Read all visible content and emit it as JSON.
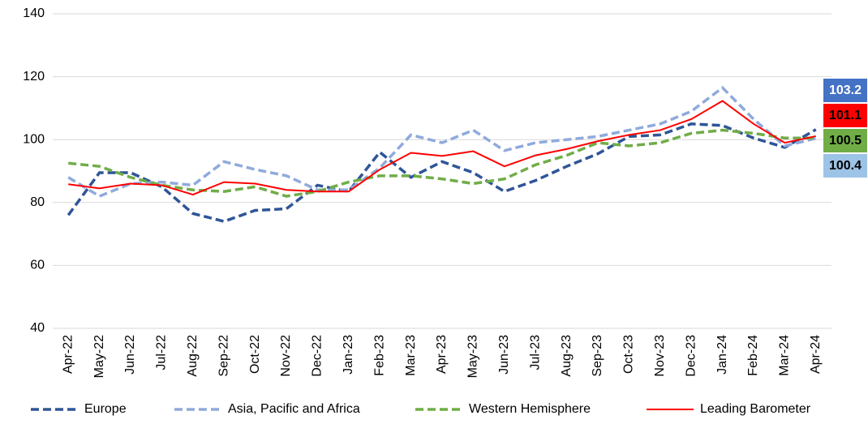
{
  "chart_data": {
    "type": "line",
    "categories": [
      "Apr-22",
      "May-22",
      "Jun-22",
      "Jul-22",
      "Aug-22",
      "Sep-22",
      "Oct-22",
      "Nov-22",
      "Dec-22",
      "Jan-23",
      "Feb-23",
      "Mar-23",
      "Apr-23",
      "May-23",
      "Jun-23",
      "Jul-23",
      "Aug-23",
      "Sep-23",
      "Oct-23",
      "Nov-23",
      "Dec-23",
      "Jan-24",
      "Feb-24",
      "Mar-24",
      "Apr-24"
    ],
    "series": [
      {
        "name": "Europe",
        "color": "#2f5597",
        "dashed": true,
        "values": [
          76,
          89.5,
          89.5,
          85,
          76.5,
          74,
          77.5,
          78,
          85.5,
          83.5,
          96,
          88,
          93,
          89.5,
          83.5,
          87,
          91.5,
          95.5,
          101,
          101.5,
          105,
          104.5,
          100.5,
          97.5,
          103.2
        ]
      },
      {
        "name": "Asia, Pacific and Africa",
        "color": "#8faadc",
        "dashed": true,
        "values": [
          88,
          82,
          86,
          86.5,
          85.5,
          93,
          90.5,
          88.5,
          84,
          84,
          91,
          101.5,
          99,
          103,
          96.5,
          99,
          100,
          101,
          103,
          105,
          109,
          116.5,
          106.5,
          98,
          100.4
        ]
      },
      {
        "name": "Western Hemisphere",
        "color": "#70ad47",
        "dashed": true,
        "values": [
          92.5,
          91.5,
          88,
          85.5,
          84,
          83.5,
          85,
          82,
          83.5,
          86.5,
          88.5,
          88.5,
          87.5,
          86,
          87.5,
          92,
          95,
          99,
          98,
          99,
          102,
          103,
          102,
          100.5,
          100.5
        ]
      },
      {
        "name": "Leading Barometer",
        "color": "#ff0000",
        "dashed": false,
        "values": [
          85.8,
          84.5,
          86,
          85.5,
          82.5,
          86.5,
          86,
          84,
          83.5,
          83.5,
          90.5,
          95.8,
          94.8,
          96.3,
          91.5,
          95,
          97,
          99.5,
          101.5,
          103,
          106.5,
          112.3,
          105,
          99,
          101.1
        ]
      }
    ],
    "end_labels": [
      {
        "series": 0,
        "color": "#4472c4",
        "text_color": "#ffffff"
      },
      {
        "series": 3,
        "color": "#ff0000",
        "text_color": "#000000"
      },
      {
        "series": 2,
        "color": "#70ad47",
        "text_color": "#000000"
      },
      {
        "series": 1,
        "color": "#9dc3e6",
        "text_color": "#000000"
      }
    ],
    "ylim": [
      40,
      140
    ],
    "yticks": [
      40,
      60,
      80,
      100,
      120,
      140
    ],
    "grid": true,
    "legend": "bottom"
  }
}
